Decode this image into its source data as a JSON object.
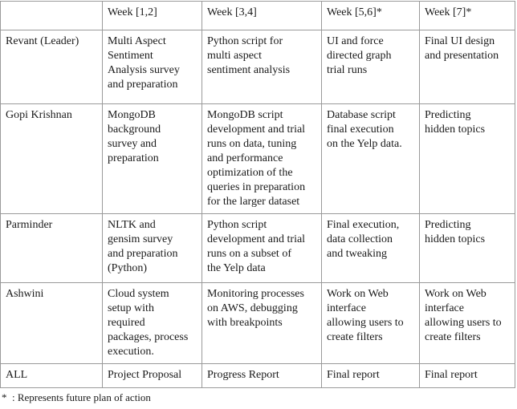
{
  "header": [
    "",
    "Week [1,2]",
    "Week [3,4]",
    "Week [5,6]*",
    "Week [7]*"
  ],
  "rows": [
    [
      "Revant (Leader)",
      "Multi Aspect\nSentiment\nAnalysis survey\nand preparation",
      "Python script for\nmulti aspect\nsentiment analysis",
      "UI and force\ndirected graph\ntrial runs",
      "Final UI design\nand presentation"
    ],
    [
      "Gopi Krishnan",
      "MongoDB\nbackground\nsurvey and\npreparation",
      "MongoDB script\ndevelopment and trial\nruns on data, tuning\nand performance\noptimization of the\nqueries in preparation\nfor the larger dataset",
      "Database script\nfinal execution\non the Yelp data.",
      "Predicting\nhidden topics"
    ],
    [
      "Parminder",
      "NLTK and\ngensim survey\nand preparation\n(Python)",
      "Python script\ndevelopment and trial\nruns on a subset of\nthe Yelp data",
      "Final execution,\ndata collection\nand tweaking",
      "Predicting\nhidden topics"
    ],
    [
      "Ashwini",
      "Cloud system\nsetup with\nrequired\npackages, process\nexecution.",
      "Monitoring processes\non AWS, debugging\nwith breakpoints",
      "Work on Web\ninterface\nallowing users to\ncreate filters",
      "Work on Web\ninterface\nallowing users to\ncreate filters"
    ],
    [
      "ALL",
      "Project Proposal",
      "Progress Report",
      "Final report",
      "Final report"
    ]
  ],
  "footnote": "*  : Represents future plan of action"
}
